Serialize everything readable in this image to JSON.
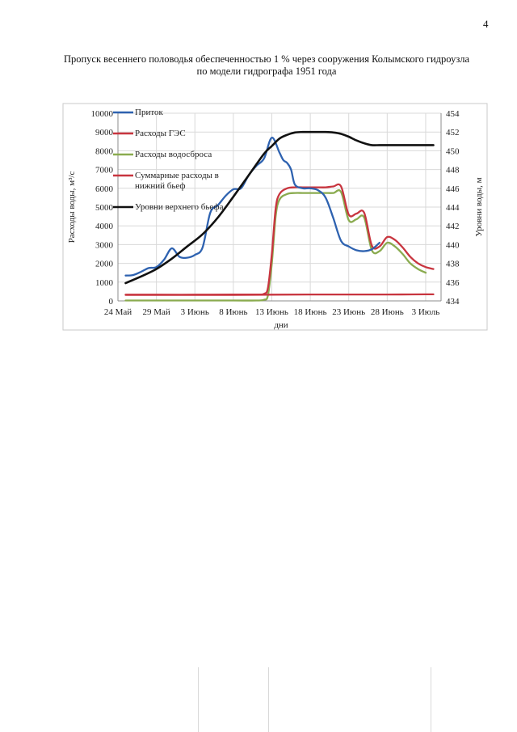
{
  "page": {
    "number": "4"
  },
  "header": {
    "title_line1": "Пропуск весеннего половодья обеспеченностью 1 % через сооружения Колымского гидроузла",
    "title_line2": "по модели гидрографа 1951 года"
  },
  "chart_data": {
    "type": "line",
    "x_unit": "days from 24 May",
    "x_ticks": [
      {
        "x": 0,
        "label": "24 Май"
      },
      {
        "x": 5,
        "label": "29 Май"
      },
      {
        "x": 10,
        "label": "3 Июнь"
      },
      {
        "x": 15,
        "label": "8 Июнь"
      },
      {
        "x": 20,
        "label": "13 Июнь"
      },
      {
        "x": 25,
        "label": "18 Июнь"
      },
      {
        "x": 30,
        "label": "23 Июнь"
      },
      {
        "x": 35,
        "label": "28 Июнь"
      },
      {
        "x": 40,
        "label": "3 Июль"
      }
    ],
    "xlim": [
      0,
      42
    ],
    "xlabel": "дни",
    "ylabel_left": "Расходы воды, м³/с",
    "ylim_left": [
      0,
      10000
    ],
    "yticks_left": [
      0,
      1000,
      2000,
      3000,
      4000,
      5000,
      6000,
      7000,
      8000,
      9000,
      10000
    ],
    "ylabel_right": "Уровни воды, м",
    "ylim_right": [
      434,
      454
    ],
    "yticks_right": [
      434,
      436,
      438,
      440,
      442,
      444,
      446,
      448,
      450,
      452,
      454
    ],
    "legend_position": "top-left",
    "series": [
      {
        "name": "Приток",
        "color": "#2e62b0",
        "axis": "left",
        "x": [
          1,
          2,
          3,
          4,
          5,
          6,
          7,
          8,
          9,
          10,
          11,
          12,
          13,
          14,
          15,
          16,
          17,
          18,
          19,
          20,
          21,
          21.5,
          22,
          22.5,
          23,
          24,
          25,
          26,
          27,
          28,
          29,
          30,
          31,
          32,
          33,
          34,
          35,
          36
        ],
        "values": [
          1350,
          1380,
          1550,
          1750,
          1800,
          2200,
          2800,
          2350,
          2300,
          2450,
          2850,
          4700,
          5100,
          5600,
          5950,
          6000,
          6700,
          7200,
          7600,
          8700,
          7900,
          7500,
          7350,
          7000,
          6200,
          6000,
          6000,
          5900,
          5500,
          4400,
          3200,
          2900,
          2700,
          2650,
          2750,
          3100,
          null,
          null
        ]
      },
      {
        "name": "Расходы ГЭС",
        "color": "#c8353f",
        "axis": "left",
        "x": [
          1,
          5,
          10,
          15,
          20,
          25,
          30,
          35,
          40,
          41
        ],
        "values": [
          320,
          320,
          320,
          320,
          330,
          340,
          340,
          340,
          350,
          350
        ]
      },
      {
        "name": "Расходы водосброса",
        "color": "#8aab4f",
        "axis": "left",
        "x": [
          1,
          5,
          10,
          15,
          18,
          19,
          19.5,
          20,
          20.5,
          21,
          22,
          23,
          24,
          25,
          26,
          27,
          28,
          29,
          30,
          31,
          32,
          33,
          34,
          35,
          36,
          37,
          38,
          39,
          40
        ],
        "values": [
          20,
          20,
          20,
          20,
          20,
          60,
          300,
          2000,
          4500,
          5400,
          5700,
          5750,
          5750,
          5750,
          5750,
          5750,
          5750,
          5800,
          4300,
          4350,
          4450,
          2700,
          2650,
          3100,
          2900,
          2500,
          2000,
          1700,
          1500
        ]
      },
      {
        "name": "Суммарные расходы в нижний бьеф",
        "color": "#c8353f",
        "axis": "left",
        "x": [
          1,
          5,
          10,
          15,
          18,
          19,
          19.5,
          20,
          20.5,
          21,
          22,
          23,
          24,
          25,
          26,
          27,
          28,
          29,
          30,
          31,
          32,
          33,
          34,
          35,
          36,
          37,
          38,
          39,
          40,
          41
        ],
        "values": [
          330,
          330,
          330,
          340,
          340,
          380,
          700,
          2500,
          4900,
          5700,
          6000,
          6050,
          6050,
          6050,
          6050,
          6050,
          6100,
          6100,
          4600,
          4650,
          4700,
          2950,
          2900,
          3400,
          3250,
          2850,
          2350,
          2000,
          1800,
          1700
        ]
      },
      {
        "name": "Уровни верхнего бьефа",
        "color": "#111111",
        "axis": "right",
        "x": [
          1,
          3,
          5,
          7,
          9,
          11,
          13,
          15,
          17,
          19,
          20,
          21,
          22,
          23,
          24,
          25,
          26,
          27,
          28,
          29,
          30,
          31,
          32,
          33,
          34,
          35,
          36,
          37,
          38,
          39,
          40,
          41
        ],
        "values": [
          435.9,
          436.6,
          437.4,
          438.5,
          439.8,
          441.1,
          442.9,
          445.1,
          447.4,
          449.7,
          450.5,
          451.3,
          451.7,
          451.95,
          452,
          452,
          452,
          452,
          451.95,
          451.8,
          451.5,
          451.1,
          450.8,
          450.6,
          450.6,
          450.6,
          450.6,
          450.6,
          450.6,
          450.6,
          450.6,
          450.6
        ]
      }
    ]
  },
  "legend": {
    "items": [
      {
        "lines": [
          "Приток"
        ],
        "color": "#2e62b0"
      },
      {
        "lines": [
          "Расходы ГЭС"
        ],
        "color": "#c8353f"
      },
      {
        "lines": [
          "Расходы водосброса"
        ],
        "color": "#8aab4f"
      },
      {
        "lines": [
          "Суммарные расходы в",
          "нижний бьеф"
        ],
        "color": "#c8353f"
      },
      {
        "lines": [
          "Уровни верхнего бьефа"
        ],
        "color": "#111111"
      }
    ]
  },
  "axis_titles": {
    "left": "Расходы воды, м³/с",
    "right": "Уровни воды, м",
    "bottom": "дни"
  }
}
